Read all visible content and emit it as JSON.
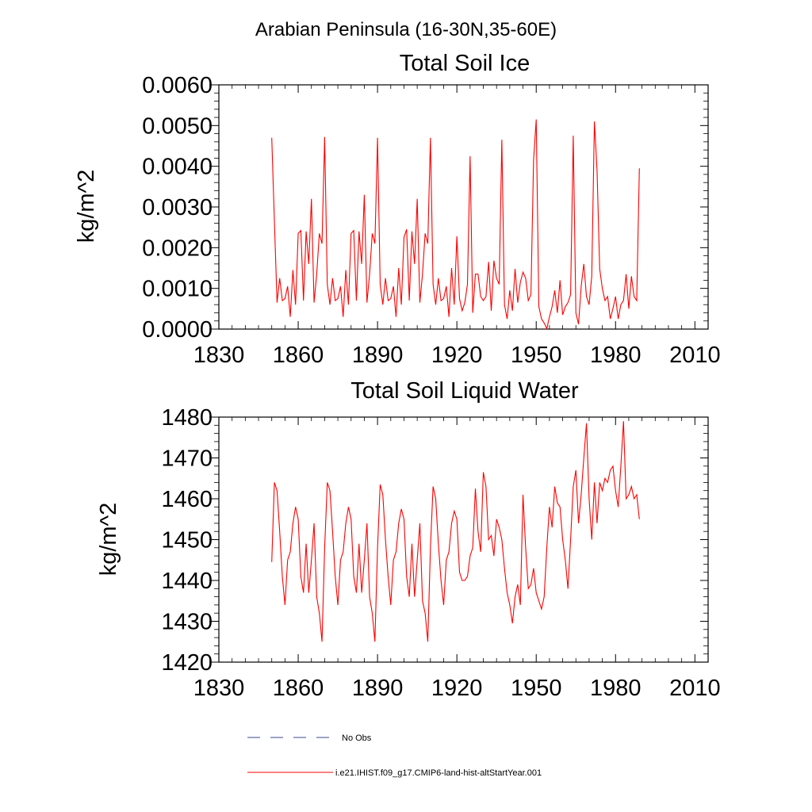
{
  "figure": {
    "title": "Arabian Peninsula (16-30N,35-60E)"
  },
  "colors": {
    "model_line": "#ff0000",
    "obs_line": "#3b4a8c",
    "axes": "#000000"
  },
  "legend": {
    "placement": "bottom-center",
    "entries": [
      {
        "label": "No Obs",
        "style": "dashed",
        "color": "#3b4a8c"
      },
      {
        "label": "i.e21.IHIST.f09_g17.CMIP6-land-hist-altStartYear.001",
        "style": "solid",
        "color": "#ff0000"
      }
    ]
  },
  "chart_data": [
    {
      "type": "line",
      "title": "Total Soil Ice",
      "xlabel": "",
      "ylabel": "kg/m^2",
      "xlim": [
        1830,
        2015
      ],
      "ylim": [
        0,
        0.006
      ],
      "xticks": [
        1830,
        1860,
        1890,
        1920,
        1950,
        1980,
        2010
      ],
      "yticks": [
        0.0,
        0.001,
        0.002,
        0.003,
        0.004,
        0.005,
        0.006
      ],
      "ytick_labels": [
        "0.0000",
        "0.0010",
        "0.0020",
        "0.0030",
        "0.0040",
        "0.0050",
        "0.0060"
      ],
      "grid": false,
      "series": [
        {
          "name": "i.e21.IHIST.f09_g17.CMIP6-land-hist-altStartYear.001",
          "color": "#ff0000",
          "x_start": 1850,
          "x_step": 1,
          "values": [
            0.0047,
            0.00265,
            0.00065,
            0.00125,
            0.0007,
            0.00075,
            0.00105,
            0.0003,
            0.00145,
            0.0006,
            0.00235,
            0.00242,
            0.0007,
            0.0024,
            0.0016,
            0.0032,
            0.00065,
            0.00135,
            0.00235,
            0.0021,
            0.00472,
            0.0011,
            0.0006,
            0.00125,
            0.0007,
            0.00075,
            0.00105,
            0.0003,
            0.00145,
            0.0006,
            0.00235,
            0.00242,
            0.0007,
            0.0024,
            0.0016,
            0.0033,
            0.00065,
            0.00135,
            0.00235,
            0.0021,
            0.0047,
            0.0011,
            0.0006,
            0.00125,
            0.0007,
            0.00075,
            0.00105,
            0.0003,
            0.0015,
            0.0006,
            0.00225,
            0.00245,
            0.0007,
            0.0024,
            0.0016,
            0.0032,
            0.00065,
            0.00135,
            0.00235,
            0.0021,
            0.0047,
            0.0011,
            0.0006,
            0.00125,
            0.0007,
            0.00075,
            0.00105,
            0.0003,
            0.0015,
            0.0006,
            0.00228,
            0.00075,
            0.00045,
            0.00065,
            0.0011,
            0.00425,
            0.0004,
            0.00135,
            0.00135,
            0.0008,
            0.0007,
            0.0008,
            0.00165,
            0.00045,
            0.00168,
            0.00125,
            0.0011,
            0.00465,
            0.0006,
            0.00025,
            0.00095,
            0.00045,
            0.00148,
            0.00065,
            0.00115,
            0.0014,
            0.00125,
            0.0007,
            0.00085,
            0.00415,
            0.00515,
            0.00055,
            0.00025,
            0.00015,
            1e-05,
            0.0003,
            0.00055,
            0.00095,
            0.0004,
            0.0012,
            0.00035,
            0.00055,
            0.00065,
            0.00085,
            0.00475,
            0.0004,
            0.00012,
            0.00105,
            0.0016,
            0.0008,
            0.0006,
            0.0013,
            0.0051,
            0.0039,
            0.00148,
            0.001,
            0.0007,
            0.0008,
            0.00025,
            0.0005,
            0.0008,
            0.00025,
            0.0006,
            0.0007,
            0.00135,
            0.0005,
            0.0013,
            0.0008,
            0.0007,
            0.00395
          ]
        }
      ]
    },
    {
      "type": "line",
      "title": "Total Soil Liquid Water",
      "xlabel": "",
      "ylabel": "kg/m^2",
      "xlim": [
        1830,
        2015
      ],
      "ylim": [
        1420,
        1480
      ],
      "xticks": [
        1830,
        1860,
        1890,
        1920,
        1950,
        1980,
        2010
      ],
      "yticks": [
        1420,
        1430,
        1440,
        1450,
        1460,
        1470,
        1480
      ],
      "ytick_labels": [
        "1420",
        "1430",
        "1440",
        "1450",
        "1460",
        "1470",
        "1480"
      ],
      "grid": false,
      "series": [
        {
          "name": "i.e21.IHIST.f09_g17.CMIP6-land-hist-altStartYear.001",
          "color": "#ff0000",
          "x_start": 1850,
          "x_step": 1,
          "values": [
            1444.5,
            1464,
            1462,
            1452,
            1441,
            1434,
            1445,
            1447,
            1454,
            1458,
            1455,
            1441,
            1437,
            1449,
            1437,
            1445,
            1454,
            1436,
            1432,
            1425,
            1448,
            1464,
            1462,
            1452,
            1441,
            1434,
            1445,
            1447,
            1454,
            1458,
            1455,
            1441,
            1437,
            1449,
            1437,
            1445,
            1454,
            1436,
            1432,
            1425,
            1448,
            1463.5,
            1461,
            1450,
            1441,
            1434,
            1445,
            1447,
            1454,
            1457.5,
            1455,
            1441,
            1436,
            1449,
            1436,
            1445,
            1454,
            1435,
            1432,
            1425,
            1448,
            1463,
            1460,
            1449,
            1440,
            1434,
            1445,
            1447,
            1454,
            1457,
            1455,
            1442,
            1440,
            1440,
            1441,
            1446,
            1448,
            1462.5,
            1452,
            1447,
            1466.5,
            1463,
            1450,
            1451,
            1446,
            1455,
            1453,
            1450,
            1443,
            1437,
            1434,
            1429.5,
            1436,
            1439,
            1434,
            1461,
            1448,
            1438,
            1439,
            1443,
            1437,
            1435,
            1433,
            1436,
            1448,
            1458,
            1453,
            1463,
            1459,
            1458,
            1450,
            1445,
            1438,
            1450,
            1463,
            1467,
            1454,
            1461,
            1470,
            1478.5,
            1460,
            1450,
            1464,
            1454,
            1464,
            1462,
            1465,
            1464,
            1467,
            1468,
            1462,
            1458,
            1468,
            1479,
            1460,
            1461,
            1463,
            1460,
            1461,
            1455
          ]
        }
      ]
    }
  ]
}
